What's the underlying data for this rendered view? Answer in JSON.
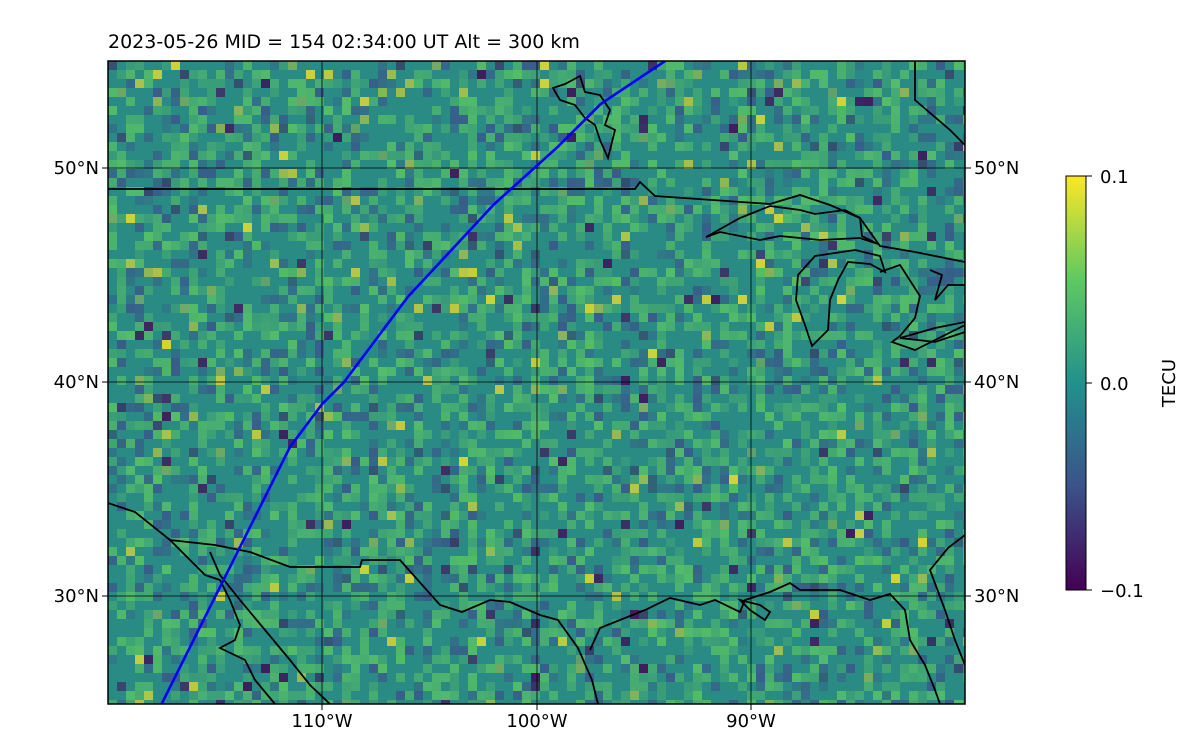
{
  "title": "2023-05-26  MID = 154    02:34:00  UT  Alt = 300 km",
  "colorbar": {
    "label": "TECU",
    "ticks": [
      "0.1",
      "0.0",
      "−0.1"
    ],
    "values": [
      0.1,
      0.0,
      -0.1
    ],
    "colormap": "viridis",
    "colors": [
      "#440154",
      "#3b528b",
      "#21918c",
      "#5ec962",
      "#fde725"
    ]
  },
  "map": {
    "lon_range": [
      -120,
      -80
    ],
    "lat_range": [
      25,
      55
    ],
    "lat_ticks_left": [
      "50°N",
      "40°N",
      "30°N"
    ],
    "lat_ticks_right": [
      "50°N",
      "40°N",
      "30°N"
    ],
    "lon_ticks": [
      "110°W",
      "100°W",
      "90°W"
    ],
    "lat_values": [
      50,
      40,
      30
    ],
    "lon_values": [
      -110,
      -100,
      -90
    ],
    "track_color": "#0000ff",
    "coastline_color": "#000000",
    "field_base_color": "#2a8a84"
  },
  "chart_data": {
    "type": "heatmap",
    "title": "2023-05-26  MID = 154    02:34:00  UT  Alt = 300 km",
    "colorbar_label": "TECU",
    "value_range": [
      -0.1,
      0.1
    ],
    "grid": true,
    "satellite_track": [
      [
        -117.5,
        25
      ],
      [
        -115,
        30
      ],
      [
        -113,
        34
      ],
      [
        -111.5,
        37
      ],
      [
        -110,
        39
      ],
      [
        -109,
        40
      ],
      [
        -106,
        44
      ],
      [
        -102,
        48.3
      ],
      [
        -99,
        51
      ],
      [
        -97,
        53
      ],
      [
        -94,
        55
      ]
    ]
  }
}
